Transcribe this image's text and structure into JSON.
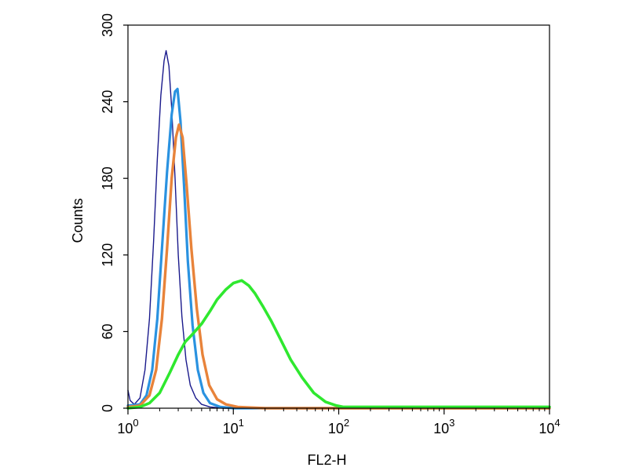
{
  "chart_data": {
    "type": "line",
    "title": "",
    "xlabel": "FL2-H",
    "ylabel": "Counts",
    "x_scale": "log",
    "xlim": [
      1,
      10000
    ],
    "ylim": [
      0,
      300
    ],
    "x_ticks": [
      {
        "value": 1,
        "base": "10",
        "exp": "0"
      },
      {
        "value": 10,
        "base": "10",
        "exp": "1"
      },
      {
        "value": 100,
        "base": "10",
        "exp": "2"
      },
      {
        "value": 1000,
        "base": "10",
        "exp": "3"
      },
      {
        "value": 10000,
        "base": "10",
        "exp": "4"
      }
    ],
    "y_ticks": [
      "0",
      "60",
      "120",
      "180",
      "240",
      "300"
    ],
    "grid": false,
    "legend": "none",
    "series": [
      {
        "color": "#1a1a8c",
        "points": [
          [
            1.0,
            14
          ],
          [
            1.05,
            6
          ],
          [
            1.15,
            3
          ],
          [
            1.3,
            8
          ],
          [
            1.45,
            30
          ],
          [
            1.6,
            70
          ],
          [
            1.75,
            130
          ],
          [
            1.9,
            195
          ],
          [
            2.05,
            245
          ],
          [
            2.2,
            272
          ],
          [
            2.3,
            280
          ],
          [
            2.45,
            268
          ],
          [
            2.6,
            235
          ],
          [
            2.8,
            180
          ],
          [
            3.0,
            120
          ],
          [
            3.25,
            72
          ],
          [
            3.55,
            38
          ],
          [
            3.9,
            18
          ],
          [
            4.4,
            8
          ],
          [
            5.0,
            3
          ],
          [
            6.0,
            1
          ],
          [
            8.0,
            0
          ],
          [
            10000,
            0
          ]
        ]
      },
      {
        "color": "#2a92e0",
        "points": [
          [
            1.0,
            2
          ],
          [
            1.3,
            3
          ],
          [
            1.5,
            10
          ],
          [
            1.7,
            30
          ],
          [
            1.9,
            70
          ],
          [
            2.1,
            125
          ],
          [
            2.35,
            185
          ],
          [
            2.6,
            230
          ],
          [
            2.8,
            248
          ],
          [
            2.95,
            250
          ],
          [
            3.15,
            225
          ],
          [
            3.4,
            175
          ],
          [
            3.7,
            115
          ],
          [
            4.1,
            65
          ],
          [
            4.6,
            30
          ],
          [
            5.2,
            12
          ],
          [
            6.0,
            4
          ],
          [
            7.5,
            1
          ],
          [
            10.0,
            0
          ],
          [
            10000,
            0
          ]
        ]
      },
      {
        "color": "#e8833a",
        "points": [
          [
            1.0,
            1
          ],
          [
            1.3,
            2
          ],
          [
            1.6,
            10
          ],
          [
            1.85,
            30
          ],
          [
            2.1,
            70
          ],
          [
            2.35,
            125
          ],
          [
            2.6,
            180
          ],
          [
            2.85,
            212
          ],
          [
            3.05,
            222
          ],
          [
            3.3,
            212
          ],
          [
            3.6,
            175
          ],
          [
            4.0,
            125
          ],
          [
            4.5,
            78
          ],
          [
            5.1,
            42
          ],
          [
            5.9,
            18
          ],
          [
            7.0,
            7
          ],
          [
            8.5,
            3
          ],
          [
            11.0,
            1
          ],
          [
            20.0,
            0
          ],
          [
            60.0,
            0
          ],
          [
            10000,
            0
          ]
        ]
      },
      {
        "color": "#2fe82f",
        "points": [
          [
            1.0,
            0
          ],
          [
            1.3,
            1
          ],
          [
            1.6,
            4
          ],
          [
            2.0,
            12
          ],
          [
            2.5,
            28
          ],
          [
            3.0,
            42
          ],
          [
            3.5,
            52
          ],
          [
            4.0,
            57
          ],
          [
            5.0,
            66
          ],
          [
            6.0,
            76
          ],
          [
            7.0,
            85
          ],
          [
            8.5,
            93
          ],
          [
            10.0,
            98
          ],
          [
            12.0,
            100
          ],
          [
            14.0,
            96
          ],
          [
            16.0,
            90
          ],
          [
            19.0,
            80
          ],
          [
            23.0,
            68
          ],
          [
            28.0,
            54
          ],
          [
            35.0,
            38
          ],
          [
            45.0,
            24
          ],
          [
            58.0,
            12
          ],
          [
            75.0,
            5
          ],
          [
            95.0,
            2
          ],
          [
            110.0,
            1
          ],
          [
            150.0,
            1
          ],
          [
            10000,
            1
          ]
        ]
      }
    ]
  }
}
